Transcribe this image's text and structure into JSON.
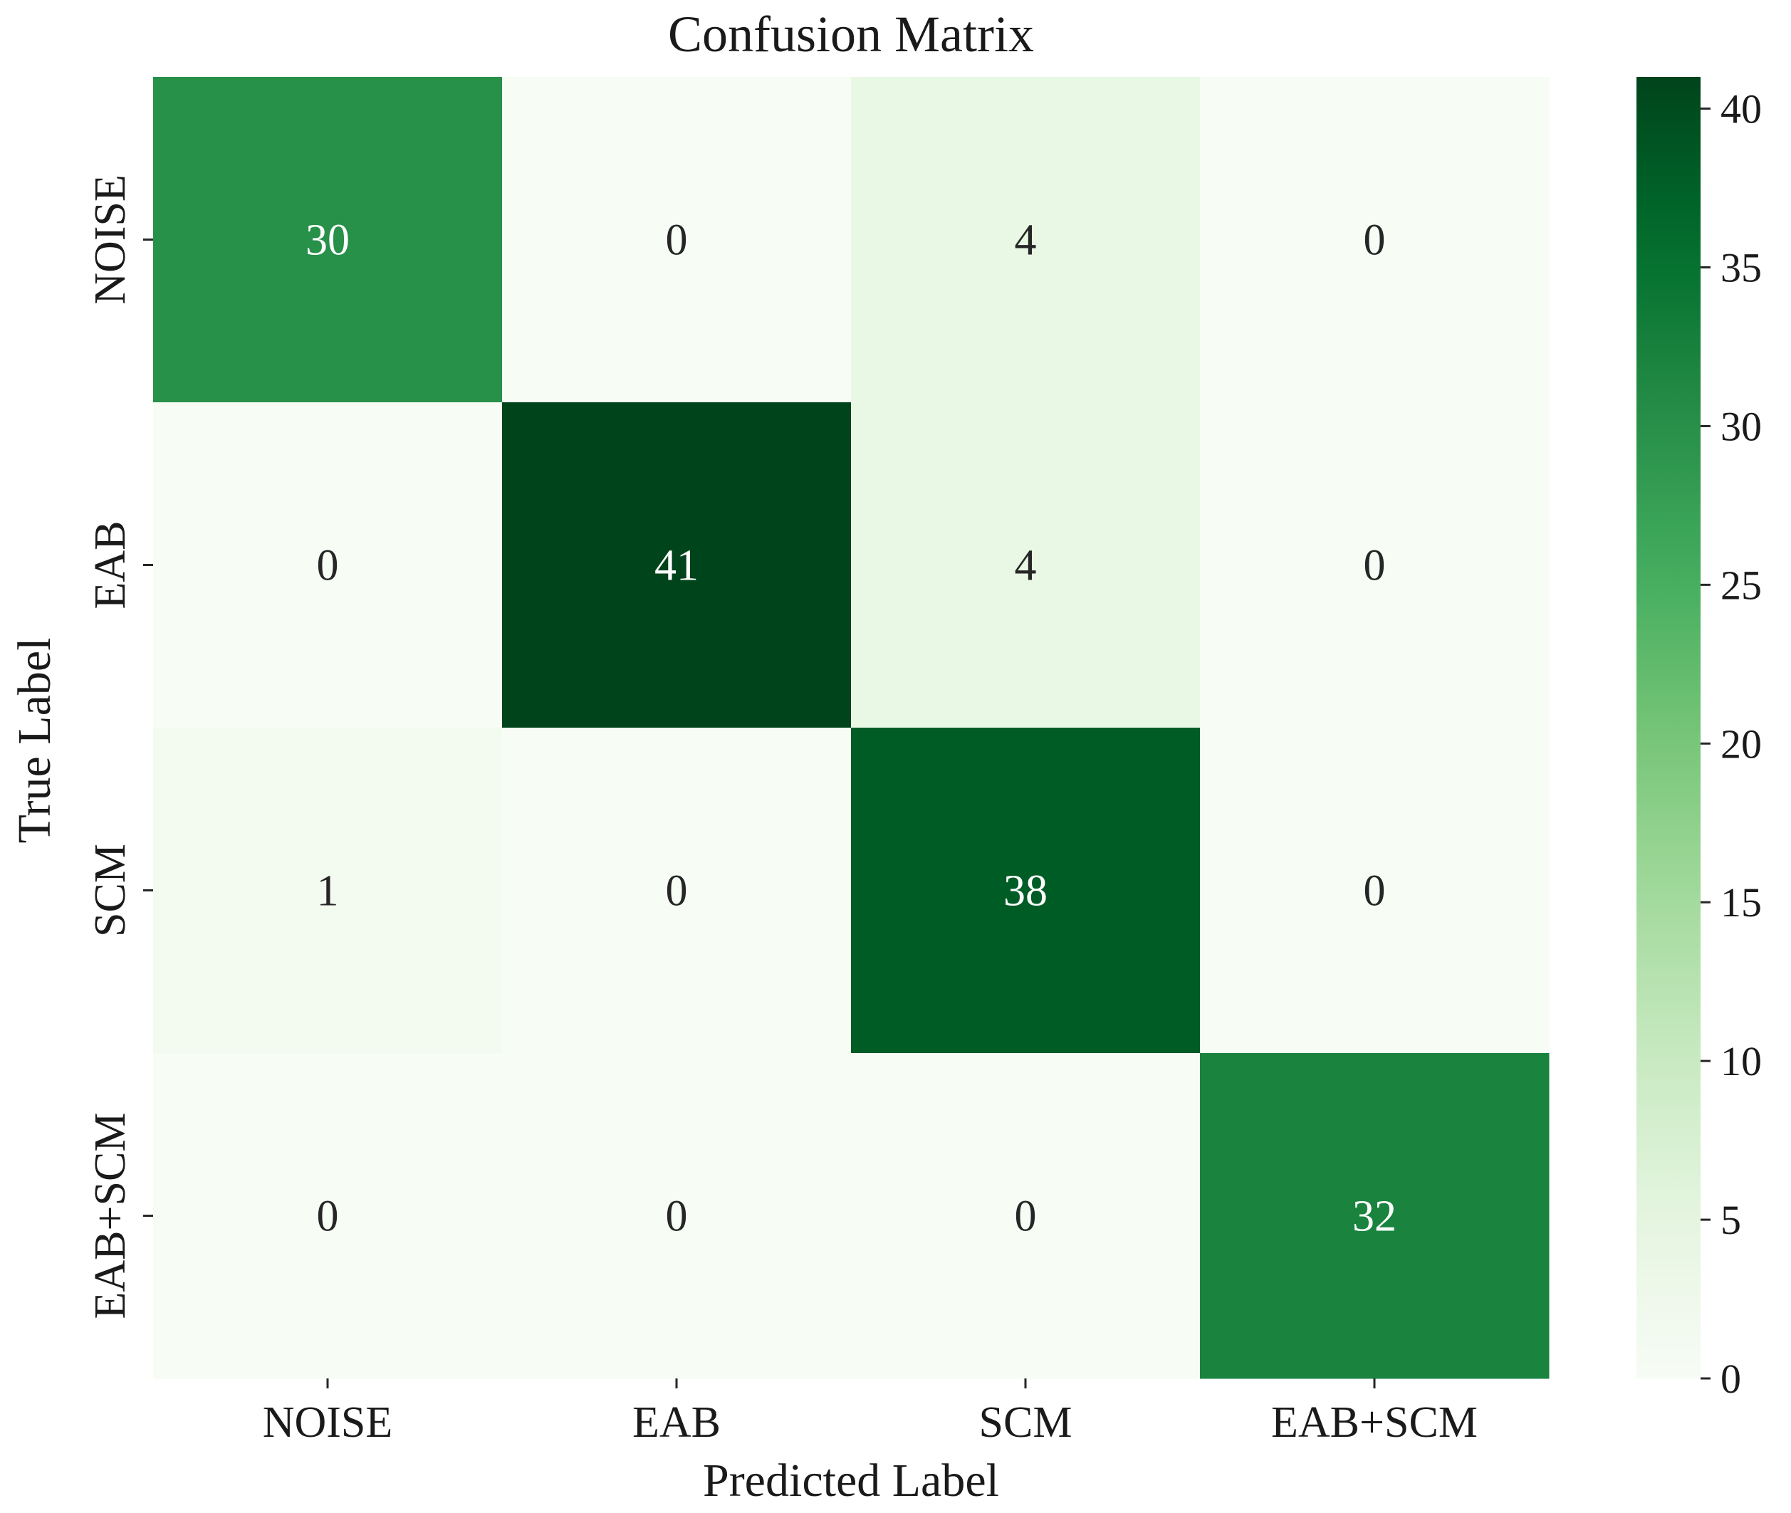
{
  "chart_data": {
    "type": "heatmap",
    "title": "Confusion Matrix",
    "xlabel": "Predicted Label",
    "ylabel": "True Label",
    "x_categories": [
      "NOISE",
      "EAB",
      "SCM",
      "EAB+SCM"
    ],
    "y_categories": [
      "NOISE",
      "EAB",
      "SCM",
      "EAB+SCM"
    ],
    "values": [
      [
        30,
        0,
        4,
        0
      ],
      [
        0,
        41,
        4,
        0
      ],
      [
        1,
        0,
        38,
        0
      ],
      [
        0,
        0,
        0,
        32
      ]
    ],
    "colormap": "Greens",
    "colors": {
      "low": "#f7fcf5",
      "high": "#00441b"
    },
    "colorbar": {
      "range": [
        0,
        41
      ],
      "ticks": [
        0,
        5,
        10,
        15,
        20,
        25,
        30,
        35,
        40
      ],
      "tick_labels": [
        "0",
        "5",
        "10",
        "15",
        "20",
        "25",
        "30",
        "35",
        "40"
      ]
    }
  }
}
